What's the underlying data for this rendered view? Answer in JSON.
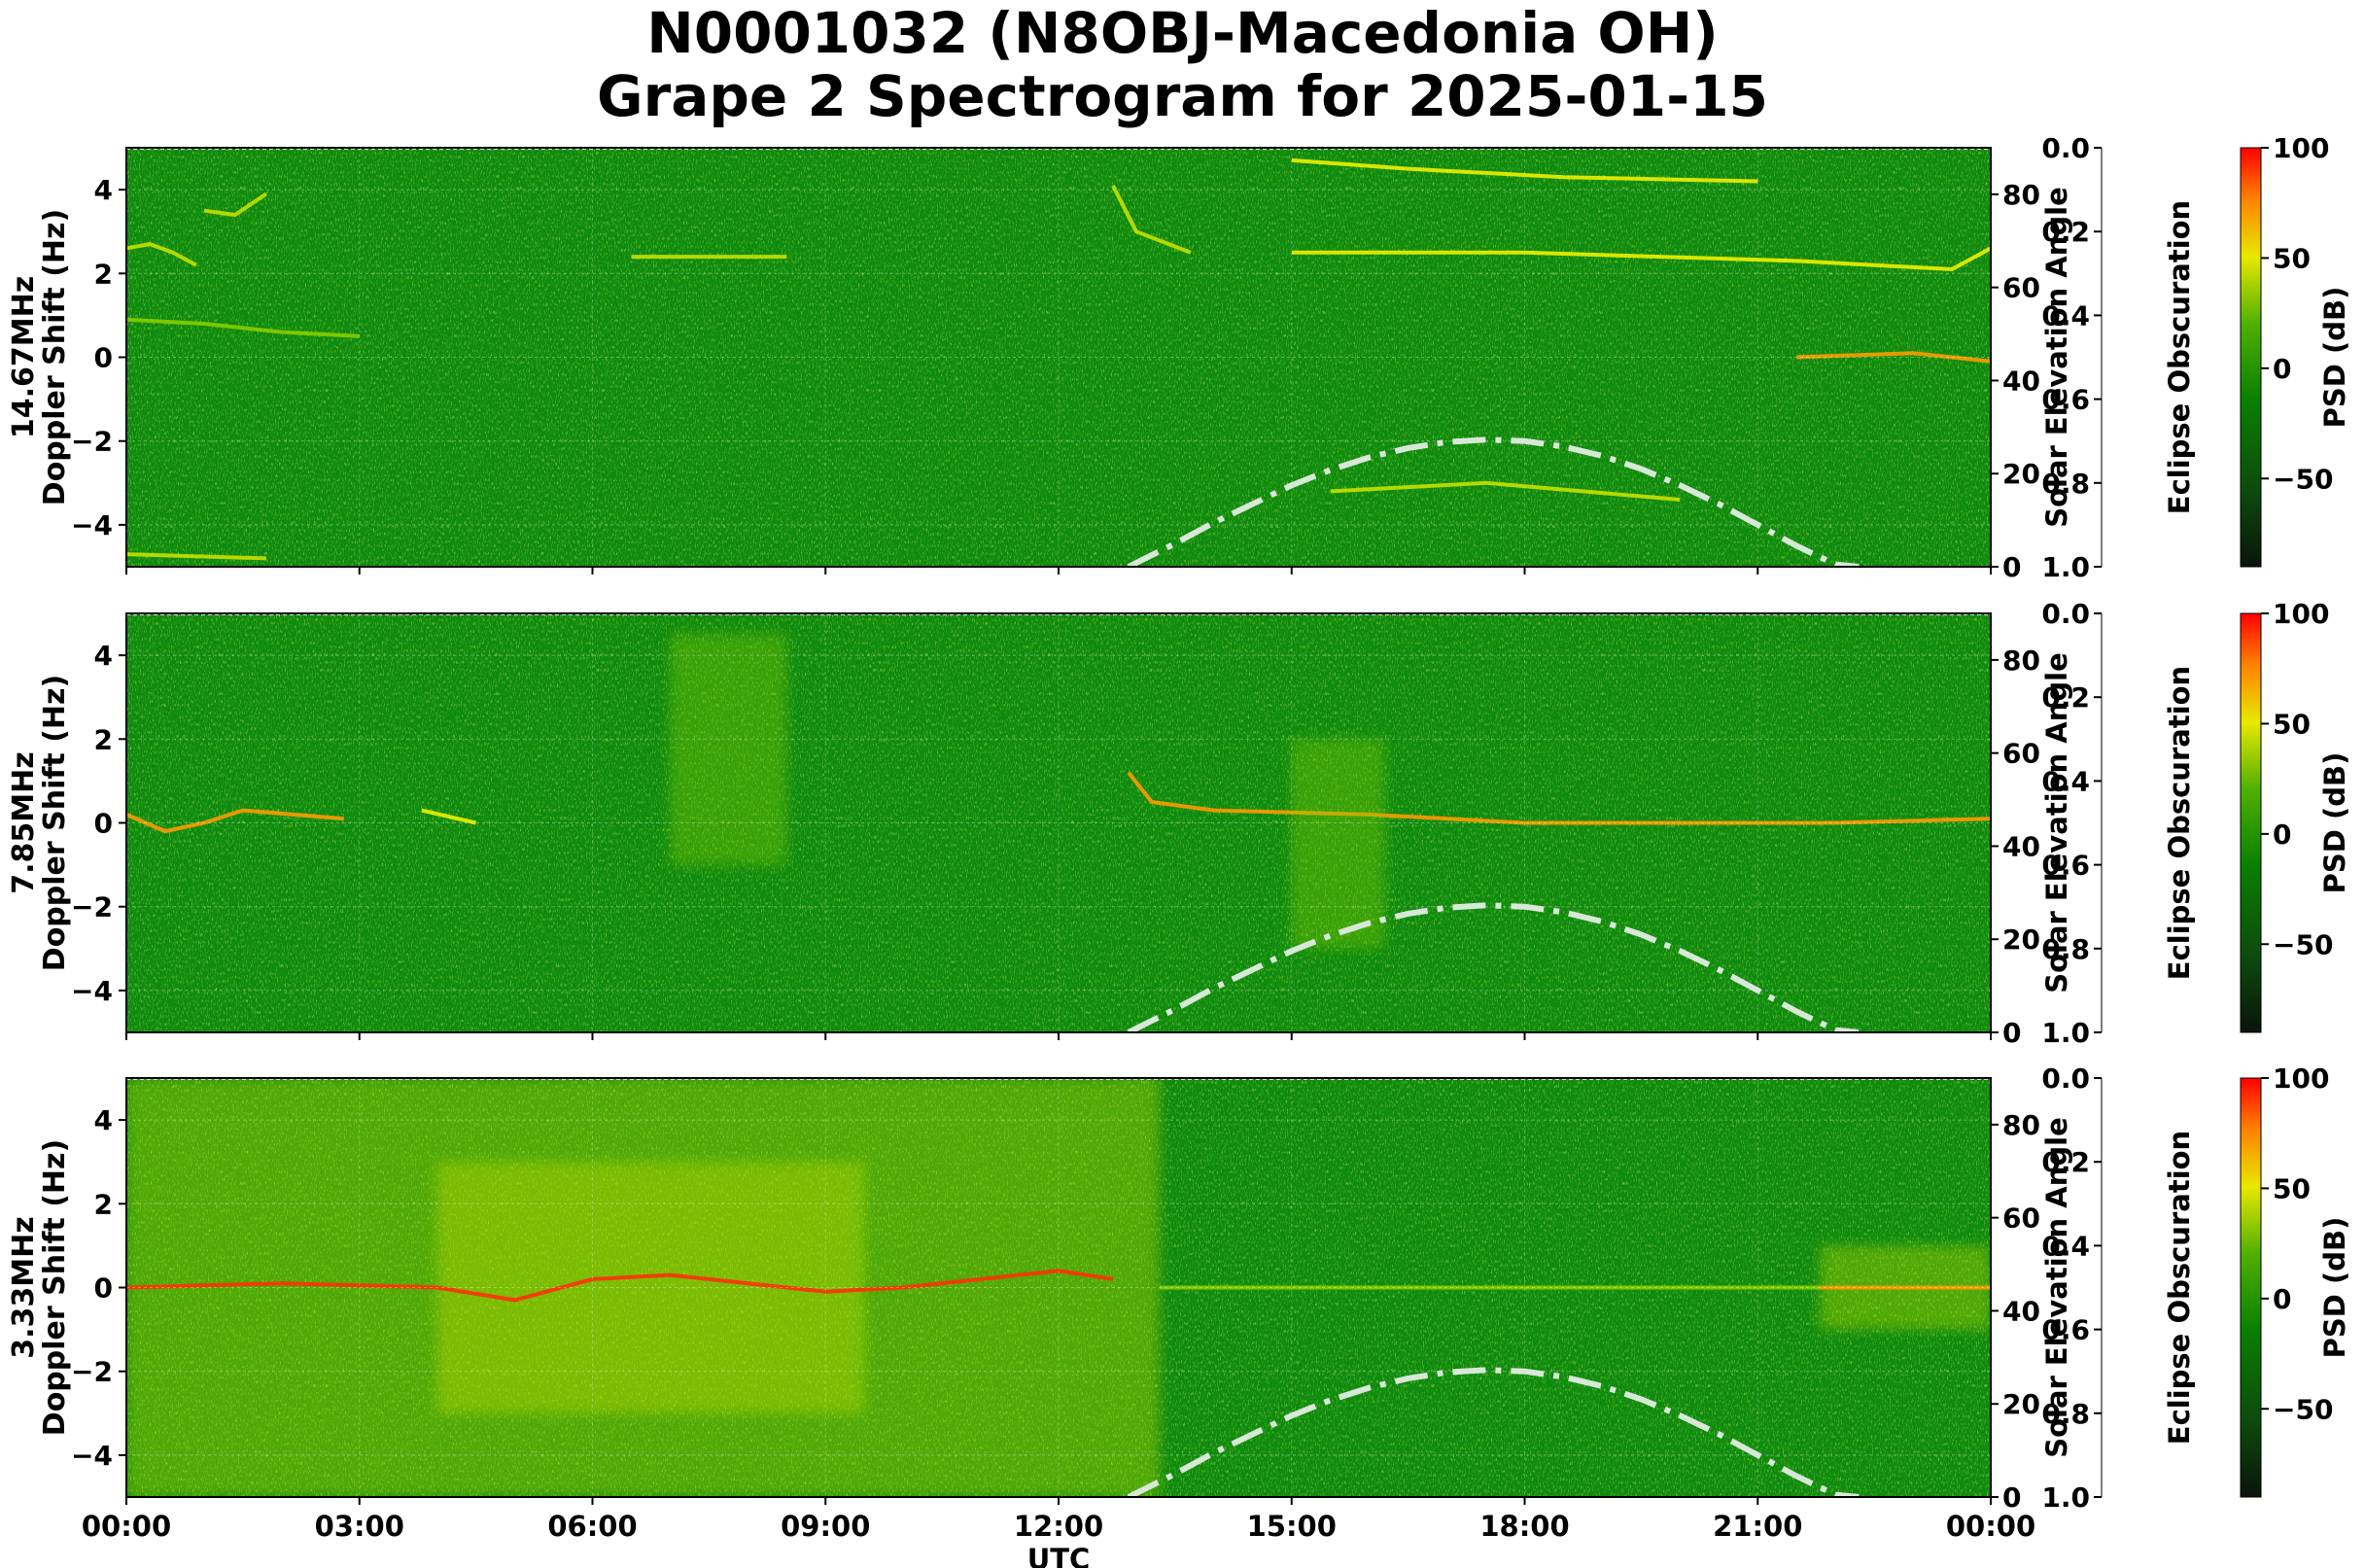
{
  "title_line1": "N0001032 (N8OBJ-Macedonia OH)",
  "title_line2": "Grape 2 Spectrogram for 2025-01-15",
  "chart_data": [
    {
      "type": "heatmap",
      "band": "14.67MHz",
      "ylabel": "Doppler Shift (Hz)",
      "xlabel": "UTC",
      "xlim_hours": [
        0,
        24
      ],
      "ylim": [
        -5,
        5
      ],
      "yticks": [
        -4,
        -2,
        0,
        2,
        4
      ],
      "ytick_labels": [
        "−4",
        "−2",
        "0",
        "2",
        "4"
      ],
      "xtick_labels": [
        "00:00",
        "03:00",
        "06:00",
        "09:00",
        "12:00",
        "15:00",
        "18:00",
        "21:00",
        "00:00"
      ],
      "solar_elevation": {
        "label": "Solar Elevation Angle",
        "ylim": [
          0,
          90
        ],
        "ticks": [
          "0",
          "20",
          "40",
          "60",
          "80"
        ],
        "hours": [
          12.9,
          13.5,
          14.0,
          14.5,
          15.0,
          15.5,
          16.0,
          16.5,
          17.0,
          17.5,
          18.0,
          18.5,
          19.0,
          19.5,
          20.0,
          20.5,
          21.0,
          21.5,
          22.0,
          22.3
        ],
        "degrees": [
          0,
          5,
          9.5,
          13.5,
          17.5,
          20.8,
          23.5,
          25.5,
          26.8,
          27.3,
          27,
          25.8,
          23.8,
          21,
          17.5,
          13.5,
          9,
          4.5,
          0.5,
          0
        ]
      },
      "eclipse_obscuration": {
        "label": "Eclipse Obscuration",
        "ticks": [
          "0.0",
          "0.2",
          "0.4",
          "0.6",
          "0.8",
          "1.0"
        ]
      },
      "colorbar": {
        "label": "PSD (dB)",
        "min": -90,
        "max": 100,
        "ticks": [
          "100",
          "50",
          "0",
          "−50"
        ]
      },
      "traces": [
        {
          "kind": "line",
          "hours": [
            0.0,
            0.3,
            0.6,
            0.9
          ],
          "doppler": [
            2.6,
            2.7,
            2.5,
            2.2
          ],
          "intensity": 40
        },
        {
          "kind": "line",
          "hours": [
            1.0,
            1.4,
            1.8
          ],
          "doppler": [
            3.5,
            3.4,
            3.9
          ],
          "intensity": 35
        },
        {
          "kind": "line",
          "hours": [
            0.0,
            1.0,
            2.0,
            3.0
          ],
          "doppler": [
            0.9,
            0.8,
            0.6,
            0.5
          ],
          "intensity": 20
        },
        {
          "kind": "line",
          "hours": [
            6.5,
            8.5
          ],
          "doppler": [
            2.4,
            2.4
          ],
          "intensity": 30
        },
        {
          "kind": "line",
          "hours": [
            12.7,
            13.0,
            13.7
          ],
          "doppler": [
            4.1,
            3.0,
            2.5
          ],
          "intensity": 40
        },
        {
          "kind": "line",
          "hours": [
            15.0,
            16.5,
            18.5,
            21.0
          ],
          "doppler": [
            4.7,
            4.5,
            4.3,
            4.2
          ],
          "intensity": 45
        },
        {
          "kind": "line",
          "hours": [
            15.0,
            18.0,
            21.5,
            23.5,
            24.0
          ],
          "doppler": [
            2.5,
            2.5,
            2.3,
            2.1,
            2.6
          ],
          "intensity": 50
        },
        {
          "kind": "line",
          "hours": [
            15.5,
            17.5,
            20.0
          ],
          "doppler": [
            -3.2,
            -3.0,
            -3.4
          ],
          "intensity": 25
        },
        {
          "kind": "line",
          "hours": [
            21.5,
            23.0,
            24.0
          ],
          "doppler": [
            0.0,
            0.1,
            -0.1
          ],
          "intensity": 70
        },
        {
          "kind": "line",
          "hours": [
            0.0,
            1.8
          ],
          "doppler": [
            -4.7,
            -4.8
          ],
          "intensity": 40
        }
      ]
    },
    {
      "type": "heatmap",
      "band": "7.85MHz",
      "ylabel": "Doppler Shift (Hz)",
      "xlabel": "UTC",
      "xlim_hours": [
        0,
        24
      ],
      "ylim": [
        -5,
        5
      ],
      "yticks": [
        -4,
        -2,
        0,
        2,
        4
      ],
      "ytick_labels": [
        "−4",
        "−2",
        "0",
        "2",
        "4"
      ],
      "xtick_labels": [
        "00:00",
        "03:00",
        "06:00",
        "09:00",
        "12:00",
        "15:00",
        "18:00",
        "21:00",
        "00:00"
      ],
      "solar_elevation": {
        "label": "Solar Elevation Angle",
        "ylim": [
          0,
          90
        ],
        "ticks": [
          "0",
          "20",
          "40",
          "60",
          "80"
        ],
        "hours": [
          12.9,
          13.5,
          14.0,
          14.5,
          15.0,
          15.5,
          16.0,
          16.5,
          17.0,
          17.5,
          18.0,
          18.5,
          19.0,
          19.5,
          20.0,
          20.5,
          21.0,
          21.5,
          22.0,
          22.3
        ],
        "degrees": [
          0,
          5,
          9.5,
          13.5,
          17.5,
          20.8,
          23.5,
          25.5,
          26.8,
          27.3,
          27,
          25.8,
          23.8,
          21,
          17.5,
          13.5,
          9,
          4.5,
          0.5,
          0
        ]
      },
      "eclipse_obscuration": {
        "label": "Eclipse Obscuration",
        "ticks": [
          "0.0",
          "0.2",
          "0.4",
          "0.6",
          "0.8",
          "1.0"
        ]
      },
      "colorbar": {
        "label": "PSD (dB)",
        "min": -90,
        "max": 100,
        "ticks": [
          "100",
          "50",
          "0",
          "−50"
        ]
      },
      "traces": [
        {
          "kind": "line",
          "hours": [
            0.0,
            0.5,
            1.0,
            1.5,
            2.8
          ],
          "doppler": [
            0.2,
            -0.2,
            0.0,
            0.3,
            0.1
          ],
          "intensity": 75
        },
        {
          "kind": "line",
          "hours": [
            3.8,
            4.5
          ],
          "doppler": [
            0.3,
            0.0
          ],
          "intensity": 55
        },
        {
          "kind": "line",
          "hours": [
            12.9,
            13.2,
            14.0,
            16.0,
            18.0,
            20.0,
            22.0,
            24.0
          ],
          "doppler": [
            1.2,
            0.5,
            0.3,
            0.2,
            0.0,
            0.0,
            0.0,
            0.1
          ],
          "intensity": 70
        },
        {
          "kind": "band",
          "hours": [
            7.0,
            8.5
          ],
          "doppler": [
            -1.0,
            4.5
          ],
          "intensity": 15
        },
        {
          "kind": "band",
          "hours": [
            15.0,
            16.2
          ],
          "doppler": [
            -3.0,
            2.0
          ],
          "intensity": 20
        }
      ]
    },
    {
      "type": "heatmap",
      "band": "3.33MHz",
      "ylabel": "Doppler Shift (Hz)",
      "xlabel": "UTC",
      "xlim_hours": [
        0,
        24
      ],
      "ylim": [
        -5,
        5
      ],
      "yticks": [
        -4,
        -2,
        0,
        2,
        4
      ],
      "ytick_labels": [
        "−4",
        "−2",
        "0",
        "2",
        "4"
      ],
      "xtick_labels": [
        "00:00",
        "03:00",
        "06:00",
        "09:00",
        "12:00",
        "15:00",
        "18:00",
        "21:00",
        "00:00"
      ],
      "solar_elevation": {
        "label": "Solar Elevation Angle",
        "ylim": [
          0,
          90
        ],
        "ticks": [
          "0",
          "20",
          "40",
          "60",
          "80"
        ],
        "hours": [
          12.9,
          13.5,
          14.0,
          14.5,
          15.0,
          15.5,
          16.0,
          16.5,
          17.0,
          17.5,
          18.0,
          18.5,
          19.0,
          19.5,
          20.0,
          20.5,
          21.0,
          21.5,
          22.0,
          22.3
        ],
        "degrees": [
          0,
          5,
          9.5,
          13.5,
          17.5,
          20.8,
          23.5,
          25.5,
          26.8,
          27.3,
          27,
          25.8,
          23.8,
          21,
          17.5,
          13.5,
          9,
          4.5,
          0.5,
          0
        ]
      },
      "eclipse_obscuration": {
        "label": "Eclipse Obscuration",
        "ticks": [
          "0.0",
          "0.2",
          "0.4",
          "0.6",
          "0.8",
          "1.0"
        ]
      },
      "colorbar": {
        "label": "PSD (dB)",
        "min": -90,
        "max": 100,
        "ticks": [
          "100",
          "50",
          "0",
          "−50"
        ]
      },
      "traces": [
        {
          "kind": "band",
          "hours": [
            0.0,
            13.3
          ],
          "doppler": [
            -5.0,
            5.0
          ],
          "intensity": 25
        },
        {
          "kind": "band",
          "hours": [
            4.0,
            9.5
          ],
          "doppler": [
            -3.0,
            3.0
          ],
          "intensity": 40
        },
        {
          "kind": "line",
          "hours": [
            0.0,
            2.0,
            4.0,
            5.0,
            6.0,
            7.0,
            8.0,
            9.0,
            10.0,
            11.0,
            12.0,
            12.7
          ],
          "doppler": [
            0.0,
            0.1,
            0.0,
            -0.3,
            0.2,
            0.3,
            0.1,
            -0.1,
            0.0,
            0.2,
            0.4,
            0.2
          ],
          "intensity": 95
        },
        {
          "kind": "line",
          "hours": [
            13.3,
            21.8
          ],
          "doppler": [
            0.0,
            0.0
          ],
          "intensity": 20
        },
        {
          "kind": "band",
          "hours": [
            21.8,
            24.0
          ],
          "doppler": [
            -1.0,
            1.0
          ],
          "intensity": 30
        },
        {
          "kind": "line",
          "hours": [
            21.8,
            24.0
          ],
          "doppler": [
            0.0,
            0.0
          ],
          "intensity": 75
        }
      ]
    }
  ]
}
